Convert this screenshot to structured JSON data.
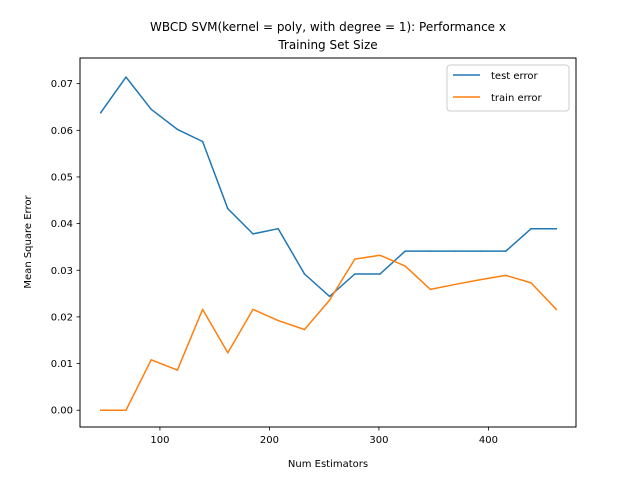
{
  "chart_data": {
    "type": "line",
    "title_lines": [
      "WBCD SVM(kernel = poly, with degree = 1): Performance x",
      "Training Set Size"
    ],
    "xlabel": "Num Estimators",
    "ylabel": "Mean Square Error",
    "xlim": [
      27,
      480
    ],
    "ylim": [
      -0.0036,
      0.0755
    ],
    "x_ticks": [
      100,
      200,
      300,
      400
    ],
    "x_tick_labels": [
      "100",
      "200",
      "300",
      "400"
    ],
    "y_ticks": [
      0.0,
      0.01,
      0.02,
      0.03,
      0.04,
      0.05,
      0.06,
      0.07
    ],
    "y_tick_labels": [
      "0.00",
      "0.01",
      "0.02",
      "0.03",
      "0.04",
      "0.05",
      "0.06",
      "0.07"
    ],
    "legend_position": "top-right",
    "x": [
      46,
      69,
      92,
      116,
      139,
      162,
      185,
      208,
      232,
      255,
      278,
      301,
      324,
      347,
      370,
      393,
      416,
      439,
      462
    ],
    "series": [
      {
        "name": "test error",
        "color": "#1f77b4",
        "values": [
          0.0638,
          0.0714,
          0.0645,
          0.0602,
          0.0576,
          0.0432,
          0.0378,
          0.0389,
          0.0292,
          0.0244,
          0.0292,
          0.0292,
          0.0341,
          0.0341,
          0.0341,
          0.0341,
          0.0341,
          0.0389,
          0.0389
        ]
      },
      {
        "name": "train error",
        "color": "#ff7f0e",
        "values": [
          0.0,
          0.0,
          0.0108,
          0.0086,
          0.0216,
          0.0123,
          0.0216,
          0.0192,
          0.0173,
          0.0236,
          0.0324,
          0.0332,
          0.0309,
          0.0259,
          0.027,
          0.028,
          0.0289,
          0.0273,
          0.0216
        ]
      }
    ]
  }
}
